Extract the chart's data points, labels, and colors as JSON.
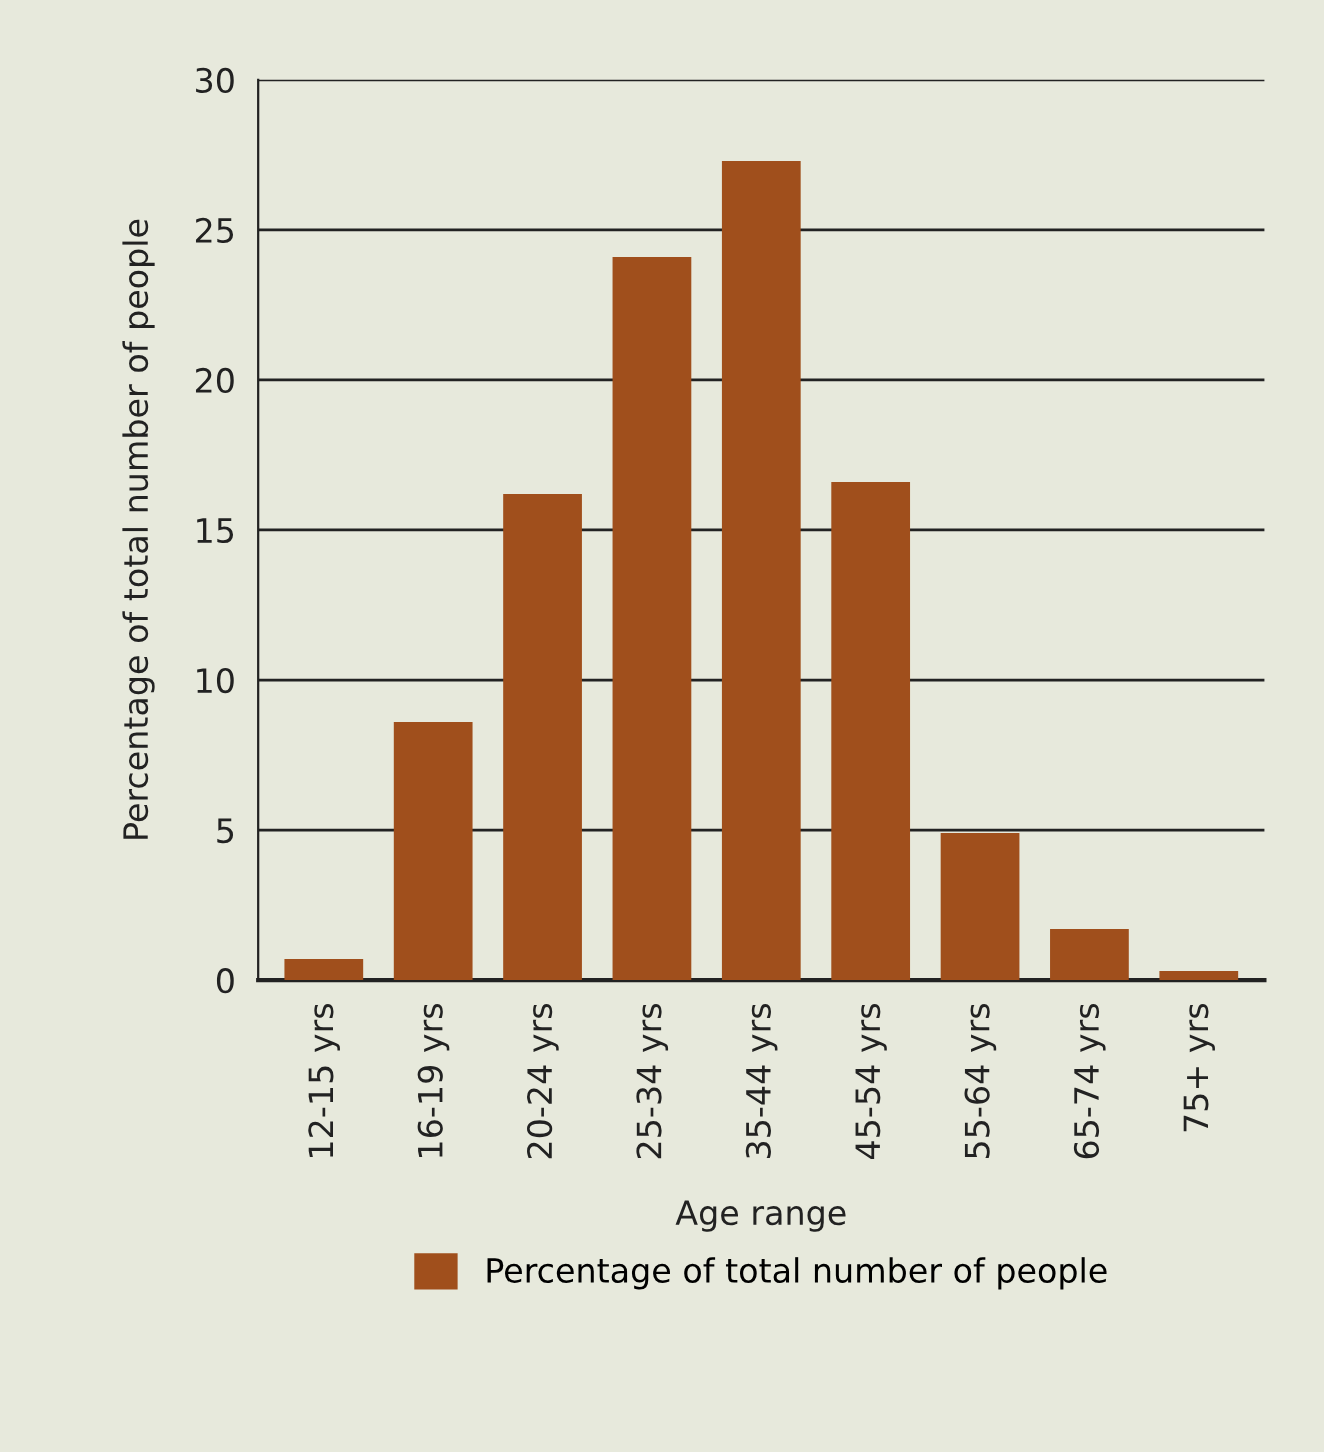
{
  "chart_data": {
    "type": "bar",
    "xlabel": "Age range",
    "ylabel": "Percentage of total number of people",
    "categories": [
      "12-15 yrs",
      "16-19 yrs",
      "20-24 yrs",
      "25-34 yrs",
      "35-44 yrs",
      "45-54 yrs",
      "55-64 yrs",
      "65-74 yrs",
      "75+ yrs"
    ],
    "series": [
      {
        "name": "Percentage of total number of people",
        "color": "#a04f1c",
        "values": [
          0.7,
          8.6,
          16.2,
          24.1,
          27.3,
          16.6,
          4.9,
          1.7,
          0.3
        ]
      }
    ],
    "ylim": [
      0,
      30
    ],
    "yticks": [
      0,
      5,
      10,
      15,
      20,
      25,
      30
    ],
    "grid": "y",
    "legend": "bottom"
  }
}
